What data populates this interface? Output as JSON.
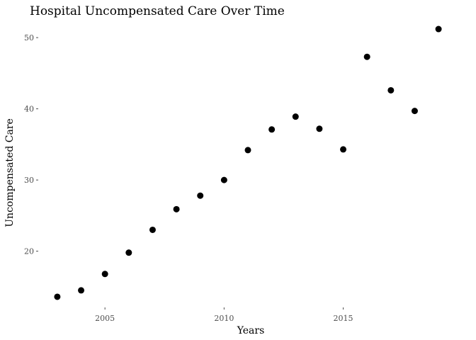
{
  "chart_data": {
    "type": "scatter",
    "title": "Hospital Uncompensated Care Over Time",
    "xlabel": "Years",
    "ylabel": "Uncompensated Care",
    "x": [
      2003,
      2004,
      2005,
      2006,
      2007,
      2008,
      2009,
      2010,
      2011,
      2012,
      2013,
      2014,
      2015,
      2016,
      2017,
      2018,
      2019
    ],
    "y": [
      13.6,
      14.5,
      16.8,
      19.8,
      23.0,
      25.9,
      27.8,
      30.0,
      34.2,
      37.1,
      38.9,
      37.2,
      34.3,
      47.3,
      42.6,
      39.7,
      51.2
    ],
    "xticks": [
      2005,
      2010,
      2015
    ],
    "yticks": [
      20,
      30,
      40,
      50
    ],
    "xlim": [
      2002.2,
      2019.8
    ],
    "ylim": [
      12.7,
      52.1
    ],
    "grid": false,
    "marker_color": "#000000"
  }
}
